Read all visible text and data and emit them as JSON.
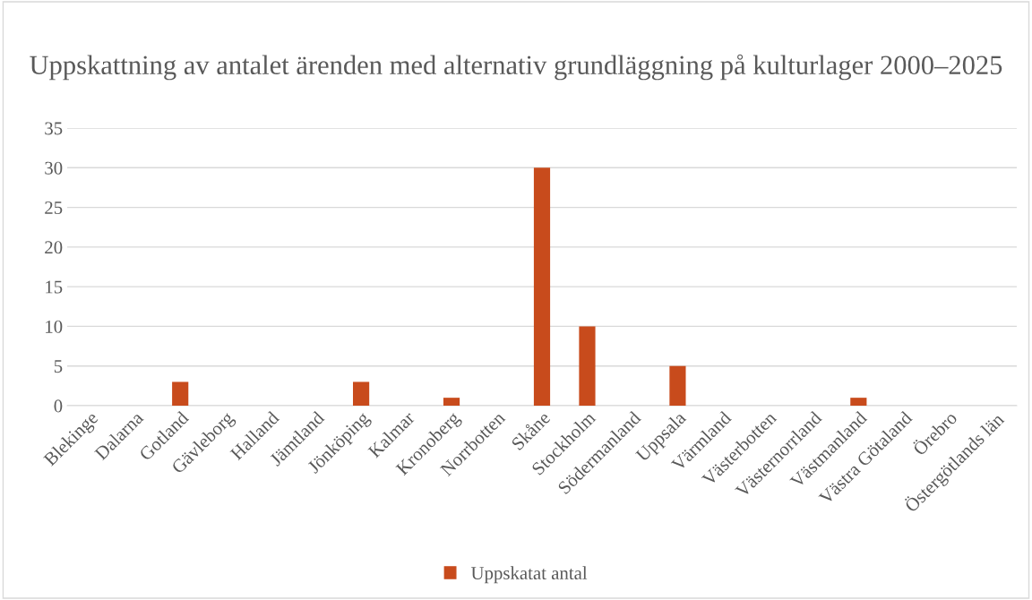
{
  "chart_data": {
    "type": "bar",
    "title": "Uppskattning av antalet ärenden med alternativ grundläggning på kulturlager 2000–2025",
    "categories": [
      "Blekinge",
      "Dalarna",
      "Gotland",
      "Gävleborg",
      "Halland",
      "Jämtland",
      "Jönköping",
      "Kalmar",
      "Kronoberg",
      "Norrbotten",
      "Skåne",
      "Stockholm",
      "Södermanland",
      "Uppsala",
      "Värmland",
      "Västerbotten",
      "Västernorrland",
      "Västmanland",
      "Västra Götaland",
      "Örebro",
      "Östergötlands län"
    ],
    "series": [
      {
        "name": "Uppskatat antal",
        "color": "#c84b1c",
        "values": [
          0,
          0,
          3,
          0,
          0,
          0,
          3,
          0,
          1,
          0,
          30,
          10,
          0,
          5,
          0,
          0,
          0,
          1,
          0,
          0,
          0
        ]
      }
    ],
    "ylim": [
      0,
      35
    ],
    "yticks": [
      0,
      5,
      10,
      15,
      20,
      25,
      30,
      35
    ],
    "grid": "y",
    "legend": "bottom"
  }
}
